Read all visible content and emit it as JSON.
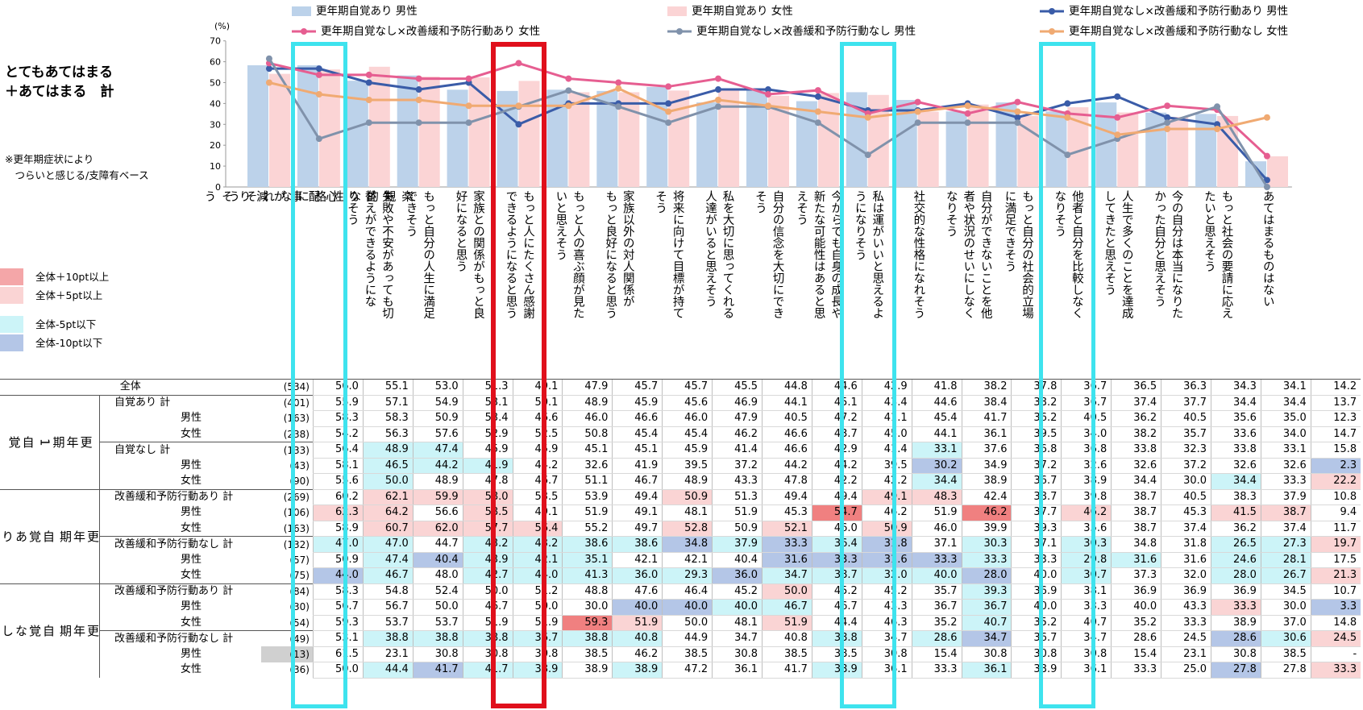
{
  "side": {
    "title": "とてもあてはまる\n＋あてはまる　計",
    "note": "※更年期症状により\n　つらいと感じる/支障有ベース",
    "key": [
      {
        "label": "全体＋10pt以上",
        "color": "#f4a6a8"
      },
      {
        "label": "全体＋5pt以上",
        "color": "#fad4d4"
      },
      {
        "label": "全体-5pt以下",
        "color": "#ccf4f8"
      },
      {
        "label": "全体-10pt以下",
        "color": "#b4c6e7"
      }
    ]
  },
  "colors": {
    "bar_male": "#bcd2ea",
    "bar_female": "#fbd4d5",
    "line_aware_none_care_yes_m": "#3a5ca8",
    "line_aware_none_care_yes_f": "#e65e91",
    "line_aware_none_care_no_m": "#8092ab",
    "line_aware_none_care_no_f": "#f0aa72",
    "cyan": "#3ee3ee",
    "red": "#e0101c",
    "dark_cell": "#f08080",
    "mid_pink": "#fad4d4",
    "light_blue": "#ccf4f8",
    "dark_blue": "#b4c6e7",
    "gray": "#d0d0d0"
  },
  "chart_data": {
    "type": "bar",
    "ylim": [
      0,
      70
    ],
    "yticks": [
      0,
      10,
      20,
      30,
      40,
      50,
      60,
      70
    ],
    "ylabel": "(%)",
    "legend_position": "top",
    "grid": false,
    "categories": [
      "心配事が減りそう",
      "楽観的な性格になれそう",
      "失敗や不安があっても切り替えができるようになりそう",
      "もっと自分の人生に満足できそう",
      "家族との関係がもっと良好になると思う",
      "もっと人にたくさん感謝できるようになると思う",
      "もっと人の喜ぶ顔が見たいと思えそう",
      "家族以外の対人関係がもっと良好になると思う",
      "将来に向けて目標が持てそう",
      "私を大切に思ってくれる人達がいると思えそう",
      "自分の信念を大切にできそう",
      "今からでも自身の成長や新たな可能性はあると思えそう",
      "私は運がいいと思えるようになりそう",
      "社交的な性格になれそう",
      "自分ができないことを他者や状況のせいにしなくなりそう",
      "もっと自分の社会的立場に満足できそう",
      "他者と自分を比較しなくなりそう",
      "人生で多くのことを達成してきたと思えそう",
      "今の自分は本当になりたかった自分と思えそう",
      "もっと社会の要請に応えたいと思えそう",
      "あてはまるものはない"
    ],
    "category_display": [
      "心\n配\n事\nが\n減\nり\nそ\nう",
      "楽\n観\n的\nな\n性\n格\nに\nな\nれ\nそ\nう",
      "失敗や不安があっても切\n替えができるようにな\nりそう",
      "もっと自分の人生に満足\nできそう",
      "家族との関係がもっと良\n好になると思う",
      "もっと人にたくさん感謝\nできるようになると思う",
      "もっと人の喜ぶ顔が見た\nいと思えそう",
      "家族以外の対人関係が\nもっと良好になると思う",
      "将来に向けて目標が持て\nそう",
      "私を大切に思ってくれる\n人達がいると思えそう",
      "自分の信念を大切にでき\nそう",
      "今からでも自身の成長や\n新たな可能性はあると思\nえそう",
      "私は運がいいと思えるよ\nうになりそう",
      "社交的な性格になれそう",
      "自分ができないことを他\n者や状況のせいにしなく\nなりそう",
      "もっと自分の社会的立場\nに満足できそう",
      "他者と自分を比較しなく\nなりそう",
      "人生で多くのことを達成\nしてきたと思えそう",
      "今の自分は本当になりた\nかった自分と思えそう",
      "もっと社会の要請に応え\nたいと思えそう",
      "あてはまるものはない"
    ],
    "series": [
      {
        "name": "更年期自覚あり 男性",
        "kind": "bar",
        "values": [
          58.3,
          58.3,
          50.9,
          53.4,
          46.6,
          46.0,
          46.6,
          46.0,
          47.9,
          40.5,
          47.2,
          41.1,
          45.4,
          41.7,
          36.2,
          40.5,
          36.2,
          40.5,
          35.6,
          35.0,
          12.3
        ]
      },
      {
        "name": "更年期自覚あり 女性",
        "kind": "bar",
        "values": [
          54.2,
          56.3,
          57.6,
          52.9,
          52.5,
          50.8,
          45.4,
          45.4,
          46.2,
          46.6,
          43.7,
          45.0,
          44.1,
          36.1,
          39.5,
          34.0,
          38.2,
          35.7,
          33.6,
          34.0,
          14.7
        ]
      },
      {
        "name": "更年期自覚なし×改善緩和予防行動あり 男性",
        "kind": "line",
        "values": [
          56.7,
          56.7,
          50.0,
          46.7,
          50.0,
          30.0,
          40.0,
          40.0,
          40.0,
          46.7,
          46.7,
          43.3,
          36.7,
          36.7,
          40.0,
          33.3,
          40.0,
          43.3,
          33.3,
          30.0,
          3.3
        ]
      },
      {
        "name": "更年期自覚なし×改善緩和予防行動あり 女性",
        "kind": "line",
        "values": [
          59.3,
          53.7,
          53.7,
          51.9,
          51.9,
          59.3,
          51.9,
          50.0,
          48.1,
          51.9,
          44.4,
          46.3,
          35.2,
          40.7,
          35.2,
          40.7,
          35.2,
          33.3,
          38.9,
          37.0,
          14.8
        ]
      },
      {
        "name": "更年期自覚なし×改善緩和予防行動なし 男性",
        "kind": "line",
        "values": [
          61.5,
          23.1,
          30.8,
          30.8,
          30.8,
          38.5,
          46.2,
          38.5,
          30.8,
          38.5,
          38.5,
          30.8,
          15.4,
          30.8,
          30.8,
          30.8,
          15.4,
          23.1,
          30.8,
          38.5,
          0
        ]
      },
      {
        "name": "更年期自覚なし×改善緩和予防行動なし 女性",
        "kind": "line",
        "values": [
          50.0,
          44.4,
          41.7,
          41.7,
          38.9,
          38.9,
          38.9,
          47.2,
          36.1,
          41.7,
          38.9,
          36.1,
          33.3,
          36.1,
          38.9,
          36.1,
          33.3,
          25.0,
          27.8,
          27.8,
          33.3
        ]
      }
    ],
    "highlight_cyan": [
      1,
      12,
      16
    ],
    "highlight_red": [
      5
    ]
  },
  "table": {
    "rows": [
      {
        "g": "全体",
        "s": "",
        "label": "全体",
        "n": "(534)",
        "v": [
          "56.0",
          "55.1",
          "53.0",
          "51.3",
          "49.1",
          "47.9",
          "45.7",
          "45.7",
          "45.5",
          "44.8",
          "44.6",
          "42.9",
          "41.8",
          "38.2",
          "37.8",
          "36.7",
          "36.5",
          "36.3",
          "34.3",
          "34.1",
          "14.2"
        ],
        "c": "000000000000000000000"
      },
      {
        "g": "A",
        "s": "1",
        "label": "自覚あり 計",
        "n": "(401)",
        "v": [
          "55.9",
          "57.1",
          "54.9",
          "53.1",
          "50.1",
          "48.9",
          "45.9",
          "45.6",
          "46.9",
          "44.1",
          "45.1",
          "43.4",
          "44.6",
          "38.4",
          "38.2",
          "36.7",
          "37.4",
          "37.7",
          "34.4",
          "34.4",
          "13.7"
        ],
        "c": "000000000000000000000"
      },
      {
        "g": "A",
        "s": "",
        "label": "男性",
        "n": "(163)",
        "v": [
          "58.3",
          "58.3",
          "50.9",
          "53.4",
          "46.6",
          "46.0",
          "46.6",
          "46.0",
          "47.9",
          "40.5",
          "47.2",
          "41.1",
          "45.4",
          "41.7",
          "36.2",
          "40.5",
          "36.2",
          "40.5",
          "35.6",
          "35.0",
          "12.3"
        ],
        "c": "000000000000000000000"
      },
      {
        "g": "A",
        "s": "",
        "label": "女性",
        "n": "(238)",
        "v": [
          "54.2",
          "56.3",
          "57.6",
          "52.9",
          "52.5",
          "50.8",
          "45.4",
          "45.4",
          "46.2",
          "46.6",
          "43.7",
          "45.0",
          "44.1",
          "36.1",
          "39.5",
          "34.0",
          "38.2",
          "35.7",
          "33.6",
          "34.0",
          "14.7"
        ],
        "c": "000000000000000000000"
      },
      {
        "g": "A",
        "s": "1",
        "label": "自覚なし 計",
        "n": "(133)",
        "v": [
          "56.4",
          "48.9",
          "47.4",
          "45.9",
          "45.9",
          "45.1",
          "45.1",
          "45.9",
          "41.4",
          "46.6",
          "42.9",
          "41.4",
          "33.1",
          "37.6",
          "36.8",
          "36.8",
          "33.8",
          "32.3",
          "33.8",
          "33.1",
          "15.8"
        ],
        "c": "033000000000300000000"
      },
      {
        "g": "A",
        "s": "",
        "label": "男性",
        "n": "(43)",
        "v": [
          "58.1",
          "46.5",
          "44.2",
          "41.9",
          "44.2",
          "32.6",
          "41.9",
          "39.5",
          "37.2",
          "44.2",
          "44.2",
          "39.5",
          "30.2",
          "34.9",
          "37.2",
          "32.6",
          "32.6",
          "37.2",
          "32.6",
          "32.6",
          "2.3"
        ],
        "c": "033300000000400000004"
      },
      {
        "g": "A",
        "s": "",
        "label": "女性",
        "n": "(90)",
        "v": [
          "55.6",
          "50.0",
          "48.9",
          "47.8",
          "46.7",
          "51.1",
          "46.7",
          "48.9",
          "43.3",
          "47.8",
          "42.2",
          "42.2",
          "34.4",
          "38.9",
          "36.7",
          "38.9",
          "34.4",
          "30.0",
          "34.4",
          "33.3",
          "22.2"
        ],
        "c": "030000000000300000302"
      },
      {
        "g": "B",
        "s": "2",
        "label": "改善緩和予防行動あり 計",
        "n": "(269)",
        "v": [
          "60.2",
          "62.1",
          "59.9",
          "58.0",
          "53.5",
          "53.9",
          "49.4",
          "50.9",
          "51.3",
          "49.4",
          "49.4",
          "49.1",
          "48.3",
          "42.4",
          "38.7",
          "39.8",
          "38.7",
          "40.5",
          "38.3",
          "37.9",
          "10.8"
        ],
        "c": "022200020002200000000"
      },
      {
        "g": "B",
        "s": "",
        "label": "男性",
        "n": "(106)",
        "v": [
          "62.3",
          "64.2",
          "56.6",
          "58.5",
          "49.1",
          "51.9",
          "49.1",
          "48.1",
          "51.9",
          "45.3",
          "54.7",
          "46.2",
          "51.9",
          "46.2",
          "37.7",
          "46.2",
          "38.7",
          "45.3",
          "41.5",
          "38.7",
          "9.4"
        ],
        "c": "220200000010010200220"
      },
      {
        "g": "B",
        "s": "",
        "label": "女性",
        "n": "(163)",
        "v": [
          "58.9",
          "60.7",
          "62.0",
          "57.7",
          "56.4",
          "55.2",
          "49.7",
          "52.8",
          "50.9",
          "52.1",
          "46.0",
          "50.9",
          "46.0",
          "39.9",
          "39.3",
          "35.6",
          "38.7",
          "37.4",
          "36.2",
          "37.4",
          "11.7"
        ],
        "c": "022220020202000000000"
      },
      {
        "g": "B",
        "s": "2",
        "label": "改善緩和予防行動なし 計",
        "n": "(132)",
        "v": [
          "47.0",
          "47.0",
          "44.7",
          "43.2",
          "43.2",
          "38.6",
          "38.6",
          "34.8",
          "37.9",
          "33.3",
          "36.4",
          "31.8",
          "37.1",
          "30.3",
          "37.1",
          "30.3",
          "34.8",
          "31.8",
          "26.5",
          "27.3",
          "19.7"
        ],
        "c": "330333343434030300332"
      },
      {
        "g": "B",
        "s": "",
        "label": "男性",
        "n": "(57)",
        "v": [
          "50.9",
          "47.4",
          "40.4",
          "43.9",
          "42.1",
          "35.1",
          "42.1",
          "42.1",
          "40.4",
          "31.6",
          "33.3",
          "31.6",
          "33.3",
          "33.3",
          "33.3",
          "29.8",
          "31.6",
          "31.6",
          "24.6",
          "28.1",
          "17.5"
        ],
        "c": "034333000444430330330"
      },
      {
        "g": "B",
        "s": "",
        "label": "女性",
        "n": "(75)",
        "v": [
          "44.0",
          "46.7",
          "48.0",
          "42.7",
          "44.0",
          "41.3",
          "36.0",
          "29.3",
          "36.0",
          "34.7",
          "38.7",
          "32.0",
          "40.0",
          "28.0",
          "40.0",
          "30.7",
          "37.3",
          "32.0",
          "28.0",
          "26.7",
          "21.3"
        ],
        "c": "430333334333340300332"
      },
      {
        "g": "C",
        "s": "3",
        "label": "改善緩和予防行動あり 計",
        "n": "(84)",
        "v": [
          "58.3",
          "54.8",
          "52.4",
          "50.0",
          "51.2",
          "48.8",
          "47.6",
          "46.4",
          "45.2",
          "50.0",
          "45.2",
          "45.2",
          "35.7",
          "39.3",
          "36.9",
          "38.1",
          "36.9",
          "36.9",
          "36.9",
          "34.5",
          "10.7"
        ],
        "c": "000000000200030000000"
      },
      {
        "g": "C",
        "s": "",
        "label": "男性",
        "n": "(30)",
        "v": [
          "56.7",
          "56.7",
          "50.0",
          "46.7",
          "50.0",
          "30.0",
          "40.0",
          "40.0",
          "40.0",
          "46.7",
          "46.7",
          "43.3",
          "36.7",
          "36.7",
          "40.0",
          "33.3",
          "40.0",
          "43.3",
          "33.3",
          "30.0",
          "3.3"
        ],
        "c": "000000443300030000204"
      },
      {
        "g": "C",
        "s": "",
        "label": "女性",
        "n": "(54)",
        "v": [
          "59.3",
          "53.7",
          "53.7",
          "51.9",
          "51.9",
          "59.3",
          "51.9",
          "50.0",
          "48.1",
          "51.9",
          "44.4",
          "46.3",
          "35.2",
          "40.7",
          "35.2",
          "40.7",
          "35.2",
          "33.3",
          "38.9",
          "37.0",
          "14.8"
        ],
        "c": "000001200200030000000"
      },
      {
        "g": "C",
        "s": "3",
        "label": "改善緩和予防行動なし 計",
        "n": "(49)",
        "v": [
          "53.1",
          "38.8",
          "38.8",
          "38.8",
          "36.7",
          "38.8",
          "40.8",
          "44.9",
          "34.7",
          "40.8",
          "38.8",
          "34.7",
          "28.6",
          "34.7",
          "36.7",
          "34.7",
          "28.6",
          "24.5",
          "28.6",
          "30.6",
          "24.5"
        ],
        "c": "033333300030340000432"
      },
      {
        "g": "C",
        "s": "",
        "label": "男性",
        "n": "(13)",
        "v": [
          "61.5",
          "23.1",
          "30.8",
          "30.8",
          "30.8",
          "38.5",
          "46.2",
          "38.5",
          "30.8",
          "38.5",
          "38.5",
          "30.8",
          "15.4",
          "30.8",
          "30.8",
          "30.8",
          "15.4",
          "23.1",
          "30.8",
          "38.5",
          "-"
        ],
        "c": "000000000000000000000"
      },
      {
        "g": "C",
        "s": "",
        "label": "女性",
        "n": "(36)",
        "v": [
          "50.0",
          "44.4",
          "41.7",
          "41.7",
          "38.9",
          "38.9",
          "38.9",
          "47.2",
          "36.1",
          "41.7",
          "38.9",
          "36.1",
          "33.3",
          "36.1",
          "38.9",
          "36.1",
          "33.3",
          "25.0",
          "27.8",
          "27.8",
          "33.3"
        ],
        "c": "034330300030030000402"
      }
    ],
    "groups": {
      "A": [
        "自\n覚",
        "更\n年\n期\n1"
      ],
      "B": [
        "自\n覚\nあ\nり",
        "更\n年\n期"
      ],
      "C": [
        "自\n覚\nな\nし",
        "更\n年\n期"
      ]
    },
    "gray_n_rows": [
      17
    ]
  }
}
